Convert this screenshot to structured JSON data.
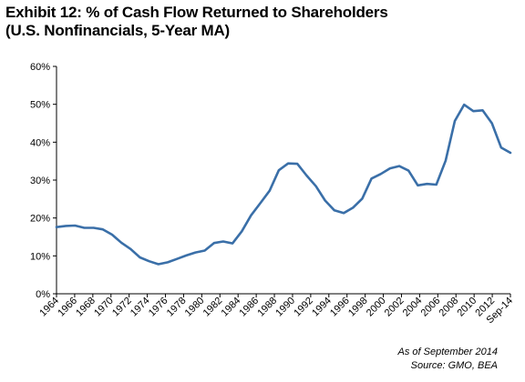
{
  "title": {
    "line1": "Exhibit 12: % of Cash Flow Returned to Shareholders",
    "line2": "(U.S. Nonfinancials, 5-Year MA)"
  },
  "footer": {
    "as_of": "As of September 2014",
    "source": "Source:  GMO, BEA"
  },
  "chart_data": {
    "type": "line",
    "title": "Exhibit 12: % of Cash Flow Returned to Shareholders (U.S. Nonfinancials, 5-Year MA)",
    "xlabel": "",
    "ylabel": "",
    "ylim": [
      0,
      60
    ],
    "y_ticks": [
      0,
      10,
      20,
      30,
      40,
      50,
      60
    ],
    "y_tick_format": "percent",
    "x_tick_labels": [
      "1964",
      "1966",
      "1968",
      "1970",
      "1972",
      "1974",
      "1976",
      "1978",
      "1980",
      "1982",
      "1984",
      "1986",
      "1988",
      "1990",
      "1992",
      "1994",
      "1996",
      "1998",
      "2000",
      "2002",
      "2004",
      "2006",
      "2008",
      "2010",
      "2012",
      "Sep-14"
    ],
    "grid": false,
    "legend": "none",
    "series_color": "#3a6fa8",
    "series": [
      {
        "name": "",
        "x": [
          1964,
          1965,
          1966,
          1967,
          1968,
          1969,
          1970,
          1971,
          1972,
          1973,
          1974,
          1975,
          1976,
          1977,
          1978,
          1979,
          1980,
          1981,
          1982,
          1983,
          1984,
          1985,
          1986,
          1987,
          1988,
          1989,
          1990,
          1991,
          1992,
          1993,
          1994,
          1995,
          1996,
          1997,
          1998,
          1999,
          2000,
          2001,
          2002,
          2003,
          2004,
          2005,
          2006,
          2007,
          2008,
          2009,
          2010,
          2011,
          2012,
          2013
        ],
        "values": [
          17.6,
          17.9,
          18.0,
          17.4,
          17.4,
          17.0,
          15.6,
          13.5,
          11.8,
          9.6,
          8.6,
          7.8,
          8.3,
          9.2,
          10.1,
          10.9,
          11.4,
          13.4,
          13.8,
          13.3,
          16.5,
          20.7,
          23.9,
          27.2,
          32.6,
          34.4,
          34.3,
          31.2,
          28.4,
          24.6,
          22.0,
          21.3,
          22.7,
          25.1,
          30.4,
          31.6,
          33.1,
          33.7,
          32.5,
          28.6,
          29.0,
          28.8,
          35.1,
          45.6,
          49.9,
          48.2,
          48.4,
          45.0,
          38.6,
          37.2
        ]
      }
    ]
  }
}
